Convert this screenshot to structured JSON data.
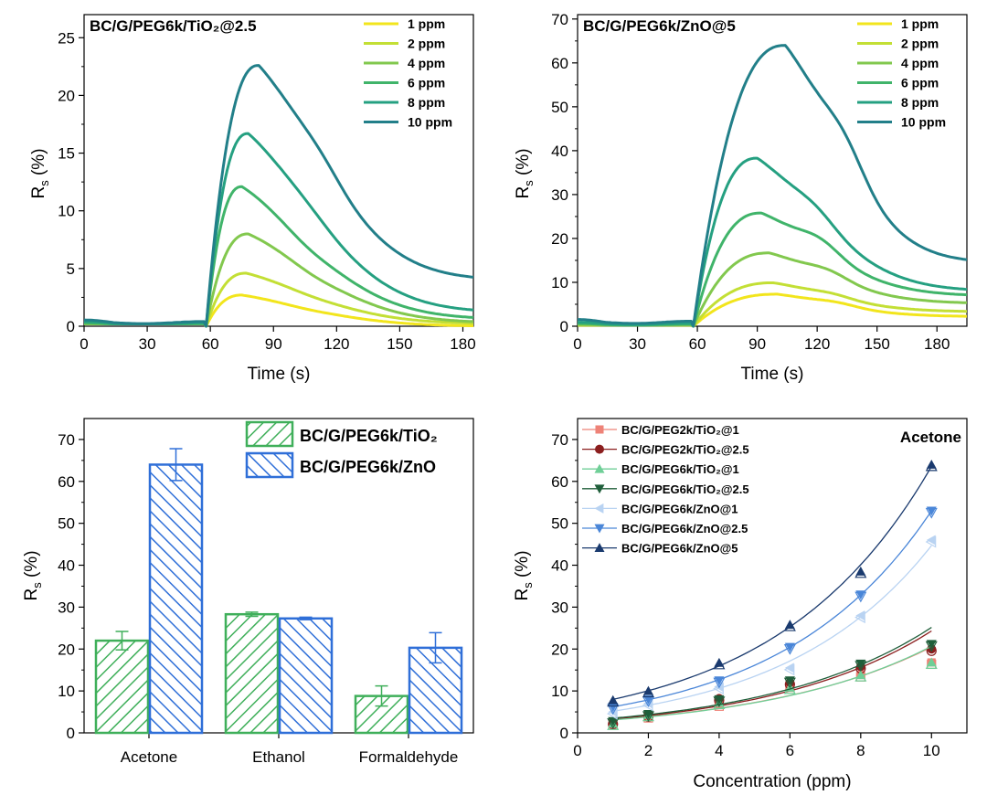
{
  "chart_data": [
    {
      "type": "line",
      "panel": "top-left",
      "title": "BC/G/PEG6k/TiO₂@2.5",
      "xlabel": "Time (s)",
      "ylabel_main": "R",
      "ylabel_sub": "s",
      "ylabel_unit": " (%)",
      "xlim": [
        0,
        185
      ],
      "ylim": [
        0,
        27
      ],
      "xticks": [
        0,
        30,
        60,
        90,
        120,
        150,
        180
      ],
      "yticks": [
        0,
        5,
        10,
        15,
        20,
        25
      ],
      "legend_position": "top-right",
      "series": [
        {
          "name": "1 ppm",
          "color": "#f2e51c",
          "peak": 2.7,
          "peak_t": 75,
          "end": 0.0,
          "shoulder": 1.9
        },
        {
          "name": "2 ppm",
          "color": "#c3df35",
          "peak": 4.6,
          "peak_t": 77,
          "end": 0.2,
          "shoulder": 3.3
        },
        {
          "name": "4 ppm",
          "color": "#82c84e",
          "peak": 8.0,
          "peak_t": 78,
          "end": 0.3,
          "shoulder": 5.6
        },
        {
          "name": "6 ppm",
          "color": "#40b46a",
          "peak": 12.1,
          "peak_t": 75,
          "end": 0.6,
          "shoulder": 8.5
        },
        {
          "name": "8 ppm",
          "color": "#25a081",
          "peak": 16.7,
          "peak_t": 78,
          "end": 1.2,
          "shoulder": 13.0
        },
        {
          "name": "10 ppm",
          "color": "#227f89",
          "peak": 22.6,
          "peak_t": 83,
          "end": 4.0,
          "shoulder": 18.5
        }
      ]
    },
    {
      "type": "line",
      "panel": "top-right",
      "title": "BC/G/PEG6k/ZnO@5",
      "xlabel": "Time (s)",
      "ylabel_main": "R",
      "ylabel_sub": "s",
      "ylabel_unit": " (%)",
      "xlim": [
        0,
        195
      ],
      "ylim": [
        0,
        71
      ],
      "xticks": [
        0,
        30,
        60,
        90,
        120,
        150,
        180
      ],
      "yticks": [
        0,
        10,
        20,
        30,
        40,
        50,
        60,
        70
      ],
      "legend_position": "top-right",
      "series": [
        {
          "name": "1 ppm",
          "color": "#f2e51c",
          "peak": 7.3,
          "peak_t": 100,
          "end": 2.2,
          "shoulder": 6.8
        },
        {
          "name": "2 ppm",
          "color": "#c3df35",
          "peak": 9.9,
          "peak_t": 98,
          "end": 3.3,
          "shoulder": 8.8
        },
        {
          "name": "4 ppm",
          "color": "#82c84e",
          "peak": 16.7,
          "peak_t": 96,
          "end": 5.2,
          "shoulder": 15.5
        },
        {
          "name": "6 ppm",
          "color": "#40b46a",
          "peak": 25.8,
          "peak_t": 92,
          "end": 6.9,
          "shoulder": 24.5
        },
        {
          "name": "8 ppm",
          "color": "#25a081",
          "peak": 38.3,
          "peak_t": 90,
          "end": 8.0,
          "shoulder": 33.0
        },
        {
          "name": "10 ppm",
          "color": "#227f89",
          "peak": 64.0,
          "peak_t": 104,
          "end": 14.5,
          "shoulder": 58.0
        }
      ]
    },
    {
      "type": "bar",
      "panel": "bottom-left",
      "ylabel_main": "R",
      "ylabel_sub": "s",
      "ylabel_unit": " (%)",
      "categories": [
        "Acetone",
        "Ethanol",
        "Formaldehyde"
      ],
      "ylim": [
        0,
        75
      ],
      "yticks": [
        0,
        10,
        20,
        30,
        40,
        50,
        60,
        70
      ],
      "legend_position": "top-right",
      "series": [
        {
          "name": "BC/G/PEG6k/TiO₂",
          "color": "#3faf5a",
          "values": [
            22.0,
            28.3,
            8.8
          ],
          "errors": [
            2.2,
            0.5,
            2.4
          ]
        },
        {
          "name": "BC/G/PEG6k/ZnO",
          "color": "#2f6fd8",
          "values": [
            64.0,
            27.3,
            20.3
          ],
          "errors": [
            3.8,
            0.3,
            3.6
          ]
        }
      ]
    },
    {
      "type": "scatter",
      "panel": "bottom-right",
      "annotation": "Acetone",
      "xlabel": "Concentration (ppm)",
      "ylabel_main": "R",
      "ylabel_sub": "s",
      "ylabel_unit": " (%)",
      "xlim": [
        0,
        11
      ],
      "ylim": [
        0,
        75
      ],
      "xticks": [
        0,
        2,
        4,
        6,
        8,
        10
      ],
      "yticks": [
        0,
        10,
        20,
        30,
        40,
        50,
        60,
        70
      ],
      "legend_position": "top-left",
      "x": [
        1,
        2,
        4,
        6,
        8,
        10
      ],
      "series": [
        {
          "name": "BC/G/PEG2k/TiO₂@1",
          "color": "#ee8277",
          "marker": "square",
          "values": [
            2.5,
            4.0,
            6.8,
            11.3,
            13.8,
            16.8
          ]
        },
        {
          "name": "BC/G/PEG2k/TiO₂@2.5",
          "color": "#8b1e1e",
          "marker": "circle",
          "values": [
            2.5,
            4.3,
            8.2,
            12.0,
            15.8,
            20.0
          ]
        },
        {
          "name": "BC/G/PEG6k/TiO₂@1",
          "color": "#6fcf97",
          "marker": "triangle-up",
          "values": [
            2.2,
            4.3,
            7.2,
            10.8,
            13.8,
            16.8
          ]
        },
        {
          "name": "BC/G/PEG6k/TiO₂@2.5",
          "color": "#1f5e3a",
          "marker": "triangle-down",
          "values": [
            2.8,
            4.5,
            8.0,
            12.5,
            16.5,
            21.2
          ]
        },
        {
          "name": "BC/G/PEG6k/ZnO@1",
          "color": "#b9d3f2",
          "marker": "triangle-left",
          "values": [
            5.0,
            7.0,
            11.0,
            15.5,
            28.0,
            46.0
          ]
        },
        {
          "name": "BC/G/PEG6k/ZnO@2.5",
          "color": "#4a86d8",
          "marker": "triangle-down",
          "values": [
            6.2,
            8.0,
            12.5,
            20.5,
            33.0,
            53.0
          ]
        },
        {
          "name": "BC/G/PEG6k/ZnO@5",
          "color": "#1a3a6e",
          "marker": "triangle-up",
          "values": [
            7.8,
            10.0,
            16.7,
            25.8,
            38.5,
            64.0
          ]
        }
      ]
    }
  ]
}
